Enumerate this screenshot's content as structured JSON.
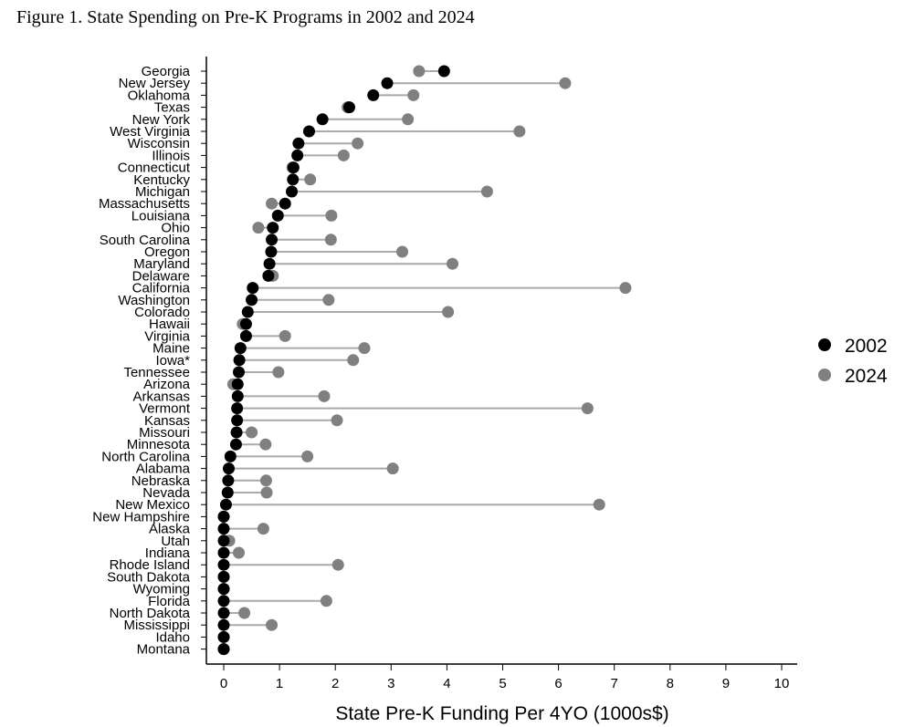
{
  "figure": {
    "title": "Figure 1. State Spending on Pre-K Programs in 2002 and 2024"
  },
  "chart_data": {
    "type": "dumbbell",
    "xlabel": "State Pre-K Funding Per 4YO (1000s$)",
    "ylabel": "",
    "xlim": [
      0,
      10
    ],
    "xticks": [
      0,
      1,
      2,
      3,
      4,
      5,
      6,
      7,
      8,
      9,
      10
    ],
    "grid": false,
    "legend_position": "right",
    "series": [
      {
        "name": "2002",
        "key": "v2002",
        "color": "#000000"
      },
      {
        "name": "2024",
        "key": "v2024",
        "color": "#808080"
      }
    ],
    "connector_color": "#aaaaaa",
    "rows": [
      {
        "state": "Georgia",
        "v2002": 3.95,
        "v2024": 3.5
      },
      {
        "state": "New Jersey",
        "v2002": 2.93,
        "v2024": 6.12
      },
      {
        "state": "Oklahoma",
        "v2002": 2.68,
        "v2024": 3.4
      },
      {
        "state": "Texas",
        "v2002": 2.25,
        "v2024": 2.22
      },
      {
        "state": "New York",
        "v2002": 1.77,
        "v2024": 3.3
      },
      {
        "state": "West Virginia",
        "v2002": 1.53,
        "v2024": 5.3
      },
      {
        "state": "Wisconsin",
        "v2002": 1.34,
        "v2024": 2.4
      },
      {
        "state": "Illinois",
        "v2002": 1.32,
        "v2024": 2.15
      },
      {
        "state": "Connecticut",
        "v2002": 1.25,
        "v2024": 1.23
      },
      {
        "state": "Kentucky",
        "v2002": 1.24,
        "v2024": 1.55
      },
      {
        "state": "Michigan",
        "v2002": 1.22,
        "v2024": 4.72
      },
      {
        "state": "Massachusetts",
        "v2002": 1.1,
        "v2024": 0.86
      },
      {
        "state": "Louisiana",
        "v2002": 0.97,
        "v2024": 1.93
      },
      {
        "state": "Ohio",
        "v2002": 0.88,
        "v2024": 0.62
      },
      {
        "state": "South Carolina",
        "v2002": 0.86,
        "v2024": 1.92
      },
      {
        "state": "Oregon",
        "v2002": 0.85,
        "v2024": 3.2
      },
      {
        "state": "Maryland",
        "v2002": 0.82,
        "v2024": 4.1
      },
      {
        "state": "Delaware",
        "v2002": 0.8,
        "v2024": 0.88
      },
      {
        "state": "California",
        "v2002": 0.52,
        "v2024": 7.2
      },
      {
        "state": "Washington",
        "v2002": 0.5,
        "v2024": 1.88
      },
      {
        "state": "Colorado",
        "v2002": 0.43,
        "v2024": 4.02
      },
      {
        "state": "Hawaii",
        "v2002": 0.4,
        "v2024": 0.34
      },
      {
        "state": "Virginia",
        "v2002": 0.4,
        "v2024": 1.1
      },
      {
        "state": "Maine",
        "v2002": 0.3,
        "v2024": 2.52
      },
      {
        "state": "Iowa*",
        "v2002": 0.28,
        "v2024": 2.32
      },
      {
        "state": "Tennessee",
        "v2002": 0.27,
        "v2024": 0.98
      },
      {
        "state": "Arizona",
        "v2002": 0.25,
        "v2024": 0.17
      },
      {
        "state": "Arkansas",
        "v2002": 0.25,
        "v2024": 1.8
      },
      {
        "state": "Vermont",
        "v2002": 0.24,
        "v2024": 6.52
      },
      {
        "state": "Kansas",
        "v2002": 0.24,
        "v2024": 2.03
      },
      {
        "state": "Missouri",
        "v2002": 0.23,
        "v2024": 0.5
      },
      {
        "state": "Minnesota",
        "v2002": 0.22,
        "v2024": 0.75
      },
      {
        "state": "North Carolina",
        "v2002": 0.12,
        "v2024": 1.5
      },
      {
        "state": "Alabama",
        "v2002": 0.09,
        "v2024": 3.03
      },
      {
        "state": "Nebraska",
        "v2002": 0.08,
        "v2024": 0.76
      },
      {
        "state": "Nevada",
        "v2002": 0.07,
        "v2024": 0.77
      },
      {
        "state": "New Mexico",
        "v2002": 0.04,
        "v2024": 6.73
      },
      {
        "state": "New Hampshire",
        "v2002": 0.0,
        "v2024": 0.0
      },
      {
        "state": "Alaska",
        "v2002": 0.0,
        "v2024": 0.71
      },
      {
        "state": "Utah",
        "v2002": 0.0,
        "v2024": 0.1
      },
      {
        "state": "Indiana",
        "v2002": 0.0,
        "v2024": 0.27
      },
      {
        "state": "Rhode Island",
        "v2002": 0.0,
        "v2024": 2.05
      },
      {
        "state": "South Dakota",
        "v2002": 0.0,
        "v2024": 0.0
      },
      {
        "state": "Wyoming",
        "v2002": 0.0,
        "v2024": 0.0
      },
      {
        "state": "Florida",
        "v2002": 0.0,
        "v2024": 1.84
      },
      {
        "state": "North Dakota",
        "v2002": 0.0,
        "v2024": 0.37
      },
      {
        "state": "Mississippi",
        "v2002": 0.0,
        "v2024": 0.86
      },
      {
        "state": "Idaho",
        "v2002": 0.0,
        "v2024": 0.0
      },
      {
        "state": "Montana",
        "v2002": 0.0,
        "v2024": 0.0
      }
    ]
  }
}
